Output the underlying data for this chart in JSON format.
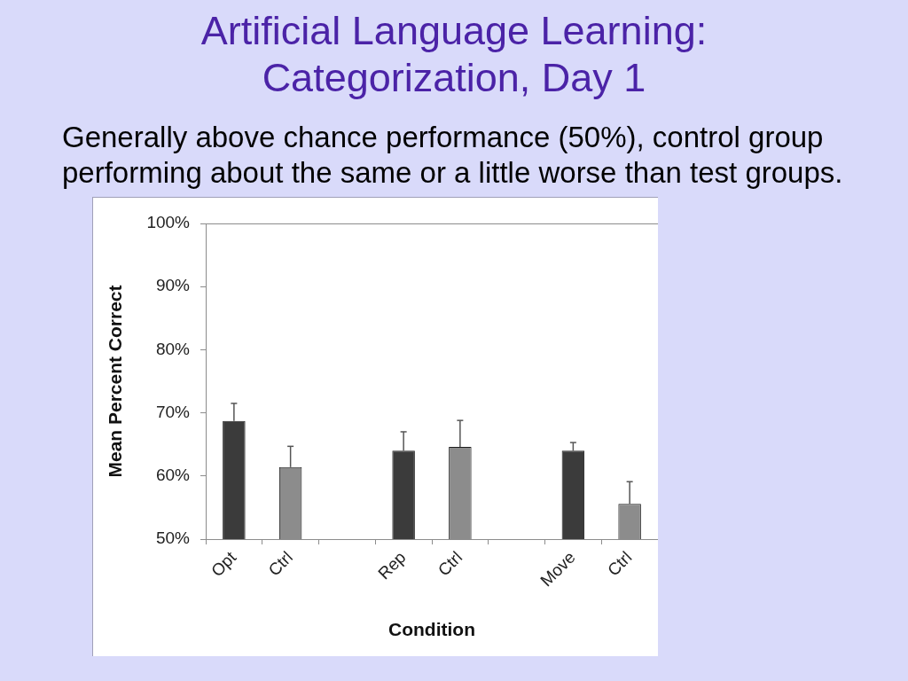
{
  "chart_data": {
    "type": "bar",
    "title": "Artificial Language Learning:\nCategorization, Day 1",
    "subtitle": "Generally above chance performance (50%), control group performing about the same or a little worse than test groups.",
    "xlabel": "Condition",
    "ylabel": "Mean Percent Correct",
    "categories": [
      "Opt",
      "Ctrl",
      null,
      "Rep",
      "Ctrl",
      null,
      "Move",
      "Ctrl"
    ],
    "values": [
      68.7,
      61.4,
      null,
      64,
      64.6,
      null,
      64,
      55.6
    ],
    "colors": [
      "#3b3b3b",
      "#8c8c8c",
      null,
      "#3b3b3b",
      "#8c8c8c",
      null,
      "#3b3b3b",
      "#8c8c8c"
    ],
    "errors": [
      [
        68.7,
        71.5
      ],
      [
        61.4,
        64.7
      ],
      null,
      [
        64,
        67
      ],
      [
        64.6,
        68.8
      ],
      null,
      [
        64,
        65.3
      ],
      [
        55.6,
        59.1
      ]
    ],
    "ylim": [
      50,
      100
    ],
    "yticks": [
      {
        "value": 50,
        "label": "50%"
      },
      {
        "value": 60,
        "label": "60%"
      },
      {
        "value": 70,
        "label": "70%"
      },
      {
        "value": 80,
        "label": "80%"
      },
      {
        "value": 90,
        "label": "90%"
      },
      {
        "value": 100,
        "label": "100%"
      }
    ],
    "grid": false,
    "legend": false
  }
}
